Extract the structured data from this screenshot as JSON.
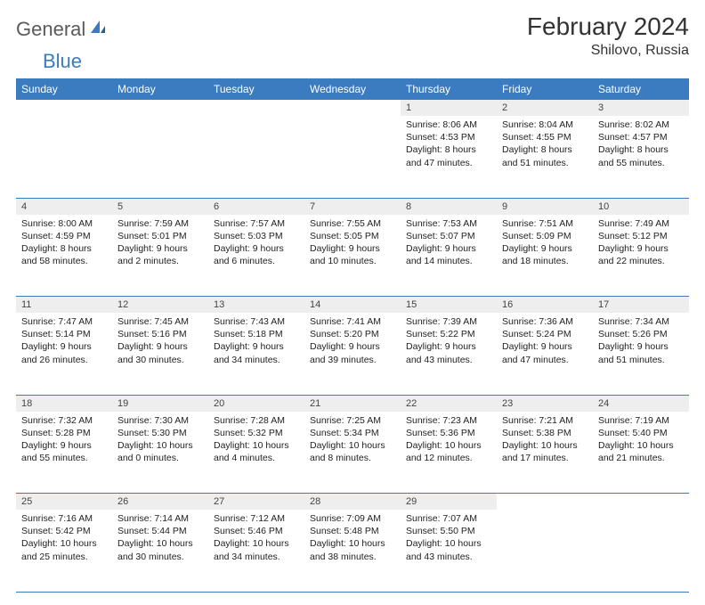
{
  "logo": {
    "general": "General",
    "blue": "Blue"
  },
  "title": "February 2024",
  "location": "Shilovo, Russia",
  "header_bg": "#3b7bbf",
  "header_fg": "#ffffff",
  "daynum_bg": "#eeeeee",
  "weekdays": [
    "Sunday",
    "Monday",
    "Tuesday",
    "Wednesday",
    "Thursday",
    "Friday",
    "Saturday"
  ],
  "weeks": [
    [
      null,
      null,
      null,
      null,
      {
        "n": "1",
        "sr": "Sunrise: 8:06 AM",
        "ss": "Sunset: 4:53 PM",
        "dl": "Daylight: 8 hours and 47 minutes."
      },
      {
        "n": "2",
        "sr": "Sunrise: 8:04 AM",
        "ss": "Sunset: 4:55 PM",
        "dl": "Daylight: 8 hours and 51 minutes."
      },
      {
        "n": "3",
        "sr": "Sunrise: 8:02 AM",
        "ss": "Sunset: 4:57 PM",
        "dl": "Daylight: 8 hours and 55 minutes."
      }
    ],
    [
      {
        "n": "4",
        "sr": "Sunrise: 8:00 AM",
        "ss": "Sunset: 4:59 PM",
        "dl": "Daylight: 8 hours and 58 minutes."
      },
      {
        "n": "5",
        "sr": "Sunrise: 7:59 AM",
        "ss": "Sunset: 5:01 PM",
        "dl": "Daylight: 9 hours and 2 minutes."
      },
      {
        "n": "6",
        "sr": "Sunrise: 7:57 AM",
        "ss": "Sunset: 5:03 PM",
        "dl": "Daylight: 9 hours and 6 minutes."
      },
      {
        "n": "7",
        "sr": "Sunrise: 7:55 AM",
        "ss": "Sunset: 5:05 PM",
        "dl": "Daylight: 9 hours and 10 minutes."
      },
      {
        "n": "8",
        "sr": "Sunrise: 7:53 AM",
        "ss": "Sunset: 5:07 PM",
        "dl": "Daylight: 9 hours and 14 minutes."
      },
      {
        "n": "9",
        "sr": "Sunrise: 7:51 AM",
        "ss": "Sunset: 5:09 PM",
        "dl": "Daylight: 9 hours and 18 minutes."
      },
      {
        "n": "10",
        "sr": "Sunrise: 7:49 AM",
        "ss": "Sunset: 5:12 PM",
        "dl": "Daylight: 9 hours and 22 minutes."
      }
    ],
    [
      {
        "n": "11",
        "sr": "Sunrise: 7:47 AM",
        "ss": "Sunset: 5:14 PM",
        "dl": "Daylight: 9 hours and 26 minutes."
      },
      {
        "n": "12",
        "sr": "Sunrise: 7:45 AM",
        "ss": "Sunset: 5:16 PM",
        "dl": "Daylight: 9 hours and 30 minutes."
      },
      {
        "n": "13",
        "sr": "Sunrise: 7:43 AM",
        "ss": "Sunset: 5:18 PM",
        "dl": "Daylight: 9 hours and 34 minutes."
      },
      {
        "n": "14",
        "sr": "Sunrise: 7:41 AM",
        "ss": "Sunset: 5:20 PM",
        "dl": "Daylight: 9 hours and 39 minutes."
      },
      {
        "n": "15",
        "sr": "Sunrise: 7:39 AM",
        "ss": "Sunset: 5:22 PM",
        "dl": "Daylight: 9 hours and 43 minutes."
      },
      {
        "n": "16",
        "sr": "Sunrise: 7:36 AM",
        "ss": "Sunset: 5:24 PM",
        "dl": "Daylight: 9 hours and 47 minutes."
      },
      {
        "n": "17",
        "sr": "Sunrise: 7:34 AM",
        "ss": "Sunset: 5:26 PM",
        "dl": "Daylight: 9 hours and 51 minutes."
      }
    ],
    [
      {
        "n": "18",
        "sr": "Sunrise: 7:32 AM",
        "ss": "Sunset: 5:28 PM",
        "dl": "Daylight: 9 hours and 55 minutes."
      },
      {
        "n": "19",
        "sr": "Sunrise: 7:30 AM",
        "ss": "Sunset: 5:30 PM",
        "dl": "Daylight: 10 hours and 0 minutes."
      },
      {
        "n": "20",
        "sr": "Sunrise: 7:28 AM",
        "ss": "Sunset: 5:32 PM",
        "dl": "Daylight: 10 hours and 4 minutes."
      },
      {
        "n": "21",
        "sr": "Sunrise: 7:25 AM",
        "ss": "Sunset: 5:34 PM",
        "dl": "Daylight: 10 hours and 8 minutes."
      },
      {
        "n": "22",
        "sr": "Sunrise: 7:23 AM",
        "ss": "Sunset: 5:36 PM",
        "dl": "Daylight: 10 hours and 12 minutes."
      },
      {
        "n": "23",
        "sr": "Sunrise: 7:21 AM",
        "ss": "Sunset: 5:38 PM",
        "dl": "Daylight: 10 hours and 17 minutes."
      },
      {
        "n": "24",
        "sr": "Sunrise: 7:19 AM",
        "ss": "Sunset: 5:40 PM",
        "dl": "Daylight: 10 hours and 21 minutes."
      }
    ],
    [
      {
        "n": "25",
        "sr": "Sunrise: 7:16 AM",
        "ss": "Sunset: 5:42 PM",
        "dl": "Daylight: 10 hours and 25 minutes."
      },
      {
        "n": "26",
        "sr": "Sunrise: 7:14 AM",
        "ss": "Sunset: 5:44 PM",
        "dl": "Daylight: 10 hours and 30 minutes."
      },
      {
        "n": "27",
        "sr": "Sunrise: 7:12 AM",
        "ss": "Sunset: 5:46 PM",
        "dl": "Daylight: 10 hours and 34 minutes."
      },
      {
        "n": "28",
        "sr": "Sunrise: 7:09 AM",
        "ss": "Sunset: 5:48 PM",
        "dl": "Daylight: 10 hours and 38 minutes."
      },
      {
        "n": "29",
        "sr": "Sunrise: 7:07 AM",
        "ss": "Sunset: 5:50 PM",
        "dl": "Daylight: 10 hours and 43 minutes."
      },
      null,
      null
    ]
  ]
}
